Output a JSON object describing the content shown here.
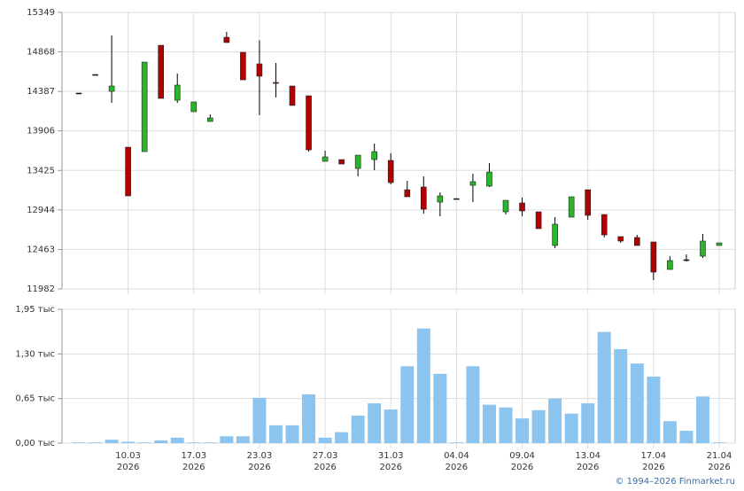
{
  "chart_data": [
    {
      "type": "candlestick",
      "categories": [
        null,
        null,
        null,
        "10.03",
        null,
        null,
        null,
        "17.03",
        null,
        null,
        null,
        "23.03",
        null,
        null,
        null,
        "27.03",
        null,
        null,
        null,
        "31.03",
        null,
        null,
        null,
        "04.04",
        null,
        null,
        null,
        "09.04",
        null,
        null,
        null,
        "13.04",
        null,
        null,
        null,
        "17.04",
        null,
        null,
        null,
        "21.04"
      ],
      "category_years": [
        null,
        null,
        null,
        "2026",
        null,
        null,
        null,
        "2026",
        null,
        null,
        null,
        "2026",
        null,
        null,
        null,
        "2026",
        null,
        null,
        null,
        "2026",
        null,
        null,
        null,
        "2026",
        null,
        null,
        null,
        "2026",
        null,
        null,
        null,
        "2026",
        null,
        null,
        null,
        "2026",
        null,
        null,
        null,
        "2026"
      ],
      "open": [
        14367,
        14593,
        14388,
        13708,
        13654,
        14949,
        14280,
        14140,
        14021,
        15046,
        14863,
        14723,
        14496,
        14453,
        14334,
        13536,
        13557,
        13449,
        13557,
        13547,
        13190,
        13223,
        13039,
        13082,
        13244,
        13234,
        12921,
        13029,
        12921,
        12511,
        12856,
        13190,
        12888,
        12619,
        12608,
        12554,
        12219,
        12338,
        12381,
        12511
      ],
      "high": [
        14367,
        14593,
        15068,
        13708,
        14744,
        14949,
        14604,
        14259,
        14108,
        15111,
        14863,
        15010,
        14733,
        14453,
        14334,
        13665,
        13557,
        13611,
        13752,
        13633,
        13298,
        13352,
        13158,
        13082,
        13385,
        13514,
        13061,
        13093,
        12921,
        12856,
        13104,
        13190,
        12888,
        12619,
        12640,
        12554,
        12381,
        12403,
        12651,
        12543
      ],
      "low": [
        14367,
        14593,
        14248,
        13115,
        13654,
        14302,
        14248,
        14140,
        14021,
        14982,
        14528,
        14097,
        14313,
        14216,
        13654,
        13536,
        13503,
        13352,
        13428,
        13255,
        13104,
        12899,
        12867,
        13082,
        13039,
        13223,
        12888,
        12867,
        12716,
        12478,
        12856,
        12824,
        12608,
        12543,
        12511,
        12090,
        12219,
        12316,
        12360,
        12511
      ],
      "close": [
        14367,
        14593,
        14453,
        13115,
        14744,
        14302,
        14464,
        14259,
        14064,
        14982,
        14528,
        14572,
        14485,
        14216,
        13676,
        13590,
        13503,
        13611,
        13654,
        13277,
        13104,
        12953,
        13115,
        13082,
        13288,
        13406,
        13061,
        12932,
        12716,
        12770,
        13104,
        12878,
        12640,
        12565,
        12511,
        12187,
        12327,
        12338,
        12565,
        12543
      ],
      "up_color": "#2ab52a",
      "down_color": "#b30000",
      "flat_color": "#000000",
      "ylim": [
        11982,
        15349
      ],
      "yticks": [
        11982,
        12463,
        12944,
        13425,
        13906,
        14387,
        14868,
        15349
      ],
      "grid": true
    },
    {
      "type": "bar",
      "values": [
        0.01,
        0.01,
        0.05,
        0.02,
        0.01,
        0.04,
        0.08,
        0.01,
        0.01,
        0.1,
        0.1,
        0.66,
        0.26,
        0.26,
        0.71,
        0.08,
        0.16,
        0.4,
        0.58,
        0.49,
        1.12,
        1.67,
        1.01,
        0.01,
        1.12,
        0.56,
        0.52,
        0.36,
        0.48,
        0.65,
        0.43,
        0.58,
        1.62,
        1.37,
        1.16,
        0.97,
        0.32,
        0.18,
        0.68,
        0.01
      ],
      "color": "#8cc4f0",
      "ylim": [
        0,
        1.95
      ],
      "yticks": [
        {
          "value": 0,
          "label": "0,00 тыс"
        },
        {
          "value": 0.65,
          "label": "0,65 тыс"
        },
        {
          "value": 1.3,
          "label": "1,30 тыс"
        },
        {
          "value": 1.95,
          "label": "1,95 тыс"
        }
      ],
      "grid": true
    }
  ],
  "footer": "© 1994–2026 Finmarket.ru"
}
